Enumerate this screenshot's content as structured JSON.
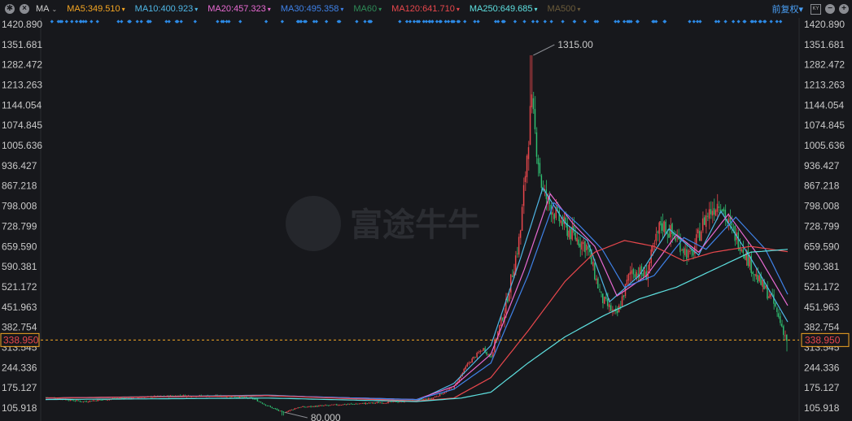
{
  "toolbar": {
    "ma_selector": "MA",
    "ma_items": [
      {
        "label": "MA5:349.510",
        "color": "#f5a623"
      },
      {
        "label": "MA10:400.923",
        "color": "#4fb7e6"
      },
      {
        "label": "MA20:457.323",
        "color": "#e86ad2"
      },
      {
        "label": "MA30:495.358",
        "color": "#3f82e8"
      },
      {
        "label": "MA60",
        "color": "#2e8b57"
      },
      {
        "label": "MA120:641.710",
        "color": "#e8474c"
      },
      {
        "label": "MA250:649.685",
        "color": "#5ee0e0"
      },
      {
        "label": "MA500",
        "color": "#6b5b3a"
      }
    ],
    "adjust_label": "前复权",
    "adjust_arrow": "▾"
  },
  "colors": {
    "up": "#e8474c",
    "down": "#2fbf71",
    "background": "#17181c",
    "grid": "#2a2c31",
    "price_line": "#f5a623"
  },
  "chart_data": {
    "type": "candlestick",
    "y_ticks": [
      "1420.890",
      "1351.681",
      "1282.472",
      "1213.263",
      "1144.054",
      "1074.845",
      "1005.636",
      "936.427",
      "867.218",
      "798.008",
      "728.799",
      "659.590",
      "590.381",
      "521.172",
      "451.963",
      "382.754",
      "313.545",
      "244.336",
      "175.127",
      "105.918"
    ],
    "ylim": [
      105.918,
      1420.89
    ],
    "current_price": "338.950",
    "high_annotation": {
      "label": "1315.00",
      "value": 1315.0
    },
    "low_annotation": {
      "label": "80.000",
      "value": 80.0
    },
    "watermark": "富途牛牛",
    "price_trend_keypoints": [
      [
        0,
        143
      ],
      [
        0.05,
        128
      ],
      [
        0.1,
        140
      ],
      [
        0.18,
        148
      ],
      [
        0.25,
        146
      ],
      [
        0.28,
        138
      ],
      [
        0.3,
        112
      ],
      [
        0.32,
        90
      ],
      [
        0.34,
        108
      ],
      [
        0.4,
        118
      ],
      [
        0.48,
        128
      ],
      [
        0.52,
        138
      ],
      [
        0.55,
        175
      ],
      [
        0.57,
        260
      ],
      [
        0.59,
        310
      ],
      [
        0.6,
        280
      ],
      [
        0.62,
        450
      ],
      [
        0.64,
        700
      ],
      [
        0.655,
        1150
      ],
      [
        0.67,
        850
      ],
      [
        0.69,
        760
      ],
      [
        0.71,
        700
      ],
      [
        0.73,
        660
      ],
      [
        0.75,
        480
      ],
      [
        0.77,
        420
      ],
      [
        0.79,
        580
      ],
      [
        0.81,
        560
      ],
      [
        0.83,
        740
      ],
      [
        0.85,
        690
      ],
      [
        0.87,
        620
      ],
      [
        0.89,
        760
      ],
      [
        0.91,
        820
      ],
      [
        0.92,
        740
      ],
      [
        0.94,
        660
      ],
      [
        0.96,
        550
      ],
      [
        0.98,
        480
      ],
      [
        1,
        338.95
      ]
    ],
    "ma_lines": [
      {
        "name": "MA10",
        "keypoints": [
          [
            0,
            140
          ],
          [
            0.3,
            150
          ],
          [
            0.5,
            130
          ],
          [
            0.55,
            190
          ],
          [
            0.6,
            320
          ],
          [
            0.64,
            620
          ],
          [
            0.67,
            860
          ],
          [
            0.7,
            740
          ],
          [
            0.73,
            680
          ],
          [
            0.76,
            470
          ],
          [
            0.8,
            560
          ],
          [
            0.84,
            720
          ],
          [
            0.88,
            630
          ],
          [
            0.91,
            780
          ],
          [
            0.95,
            620
          ],
          [
            1,
            400.92
          ]
        ]
      },
      {
        "name": "MA20",
        "keypoints": [
          [
            0,
            140
          ],
          [
            0.3,
            148
          ],
          [
            0.5,
            135
          ],
          [
            0.55,
            180
          ],
          [
            0.6,
            290
          ],
          [
            0.645,
            580
          ],
          [
            0.68,
            840
          ],
          [
            0.71,
            740
          ],
          [
            0.74,
            660
          ],
          [
            0.77,
            490
          ],
          [
            0.81,
            560
          ],
          [
            0.85,
            700
          ],
          [
            0.88,
            640
          ],
          [
            0.92,
            770
          ],
          [
            0.96,
            630
          ],
          [
            1,
            457.32
          ]
        ]
      },
      {
        "name": "MA30",
        "keypoints": [
          [
            0,
            140
          ],
          [
            0.3,
            148
          ],
          [
            0.5,
            135
          ],
          [
            0.55,
            170
          ],
          [
            0.6,
            260
          ],
          [
            0.65,
            560
          ],
          [
            0.685,
            810
          ],
          [
            0.72,
            730
          ],
          [
            0.75,
            650
          ],
          [
            0.78,
            520
          ],
          [
            0.82,
            560
          ],
          [
            0.86,
            690
          ],
          [
            0.89,
            650
          ],
          [
            0.93,
            760
          ],
          [
            0.97,
            650
          ],
          [
            1,
            495.36
          ]
        ]
      },
      {
        "name": "MA120",
        "keypoints": [
          [
            0,
            140
          ],
          [
            0.3,
            148
          ],
          [
            0.5,
            130
          ],
          [
            0.55,
            140
          ],
          [
            0.6,
            210
          ],
          [
            0.65,
            370
          ],
          [
            0.7,
            540
          ],
          [
            0.74,
            640
          ],
          [
            0.78,
            680
          ],
          [
            0.82,
            660
          ],
          [
            0.86,
            610
          ],
          [
            0.9,
            640
          ],
          [
            0.95,
            660
          ],
          [
            1,
            641.71
          ]
        ]
      },
      {
        "name": "MA250",
        "keypoints": [
          [
            0,
            135
          ],
          [
            0.3,
            140
          ],
          [
            0.5,
            128
          ],
          [
            0.56,
            140
          ],
          [
            0.6,
            160
          ],
          [
            0.65,
            260
          ],
          [
            0.7,
            350
          ],
          [
            0.75,
            420
          ],
          [
            0.8,
            480
          ],
          [
            0.85,
            520
          ],
          [
            0.9,
            580
          ],
          [
            0.95,
            640
          ],
          [
            1,
            649.69
          ]
        ]
      }
    ]
  }
}
